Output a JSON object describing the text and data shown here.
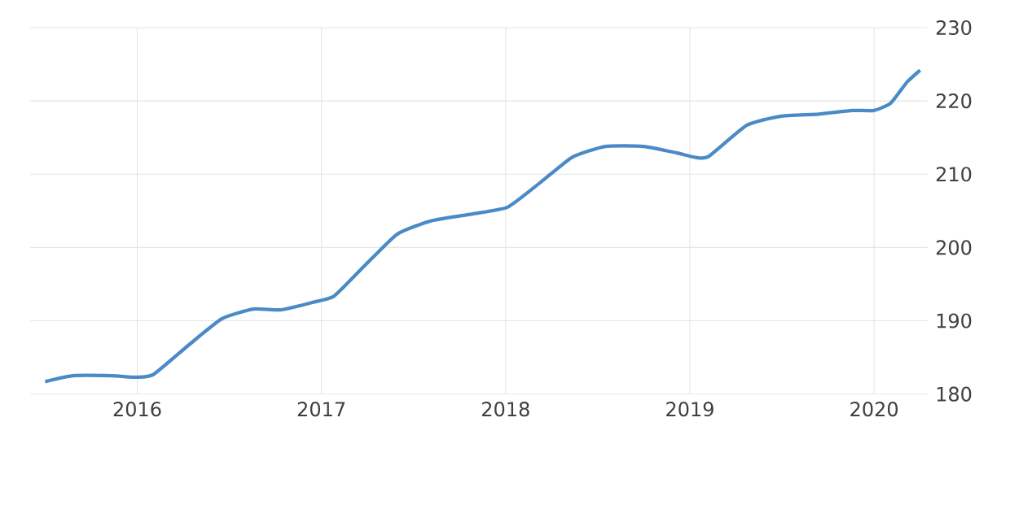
{
  "chart_data": {
    "type": "line",
    "x": [
      2015.5,
      2015.65,
      2015.86,
      2016.0,
      2016.09,
      2016.28,
      2016.46,
      2016.63,
      2016.78,
      2016.95,
      2017.07,
      2017.23,
      2017.41,
      2017.59,
      2017.8,
      2018.01,
      2018.19,
      2018.36,
      2018.54,
      2018.75,
      2018.93,
      2019.03,
      2019.1,
      2019.31,
      2019.49,
      2019.7,
      2019.88,
      2020.0,
      2020.09,
      2020.18,
      2020.25
    ],
    "series": [
      {
        "color": "#4a8ac6",
        "values": [
          181.7,
          182.5,
          182.5,
          182.3,
          182.7,
          186.7,
          190.3,
          191.6,
          191.5,
          192.5,
          193.4,
          197.4,
          201.8,
          203.6,
          204.5,
          205.5,
          208.9,
          212.3,
          213.8,
          213.8,
          212.9,
          212.3,
          212.4,
          216.7,
          217.9,
          218.2,
          218.7,
          218.7,
          219.7,
          222.6,
          224.2
        ]
      }
    ],
    "xlim": [
      2015.42,
      2020.29
    ],
    "ylim": [
      180,
      230
    ],
    "xticks": [
      2016,
      2017,
      2018,
      2019,
      2020
    ],
    "yticks": [
      180,
      190,
      200,
      210,
      220,
      230
    ],
    "grid": true,
    "marker": "none",
    "line_style": "solid"
  }
}
